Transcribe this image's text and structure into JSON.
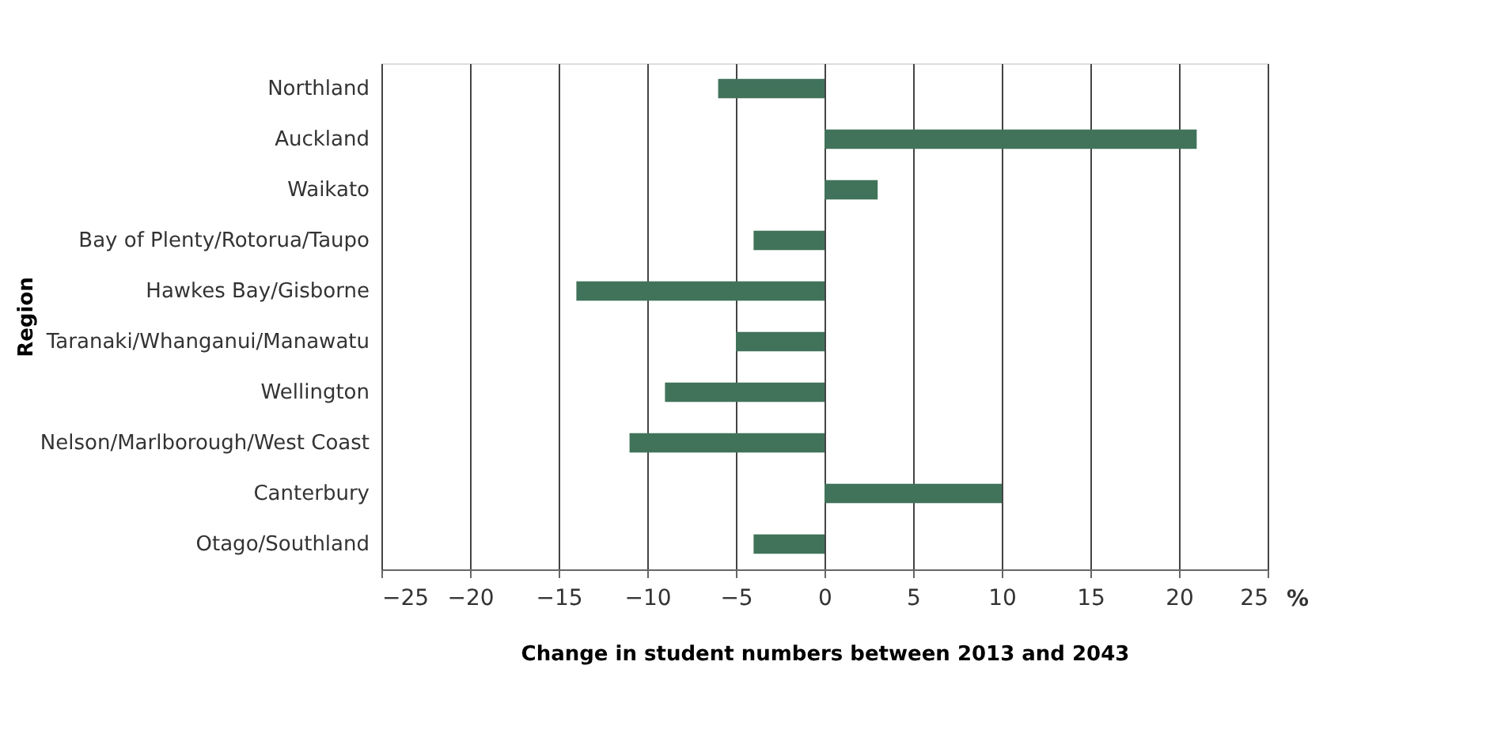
{
  "chart_data": {
    "type": "bar",
    "orientation": "horizontal",
    "xlabel": "Change in student numbers between 2013 and 2043",
    "ylabel": "Region",
    "categories": [
      "Northland",
      "Auckland",
      "Waikato",
      "Bay of Plenty/Rotorua/Taupo",
      "Hawkes Bay/Gisborne",
      "Taranaki/Whanganui/Manawatu",
      "Wellington",
      "Nelson/Marlborough/West Coast",
      "Canterbury",
      "Otago/Southland"
    ],
    "values": [
      -6,
      21,
      3,
      -4,
      -14,
      -5,
      -9,
      -11,
      10,
      -4
    ],
    "color": "#41735b",
    "xlim": [
      -25,
      25
    ],
    "xticks": [
      -25,
      -20,
      -15,
      -10,
      -5,
      0,
      5,
      10,
      15,
      20,
      25
    ],
    "grid": "x",
    "annotations": [
      "%"
    ]
  }
}
